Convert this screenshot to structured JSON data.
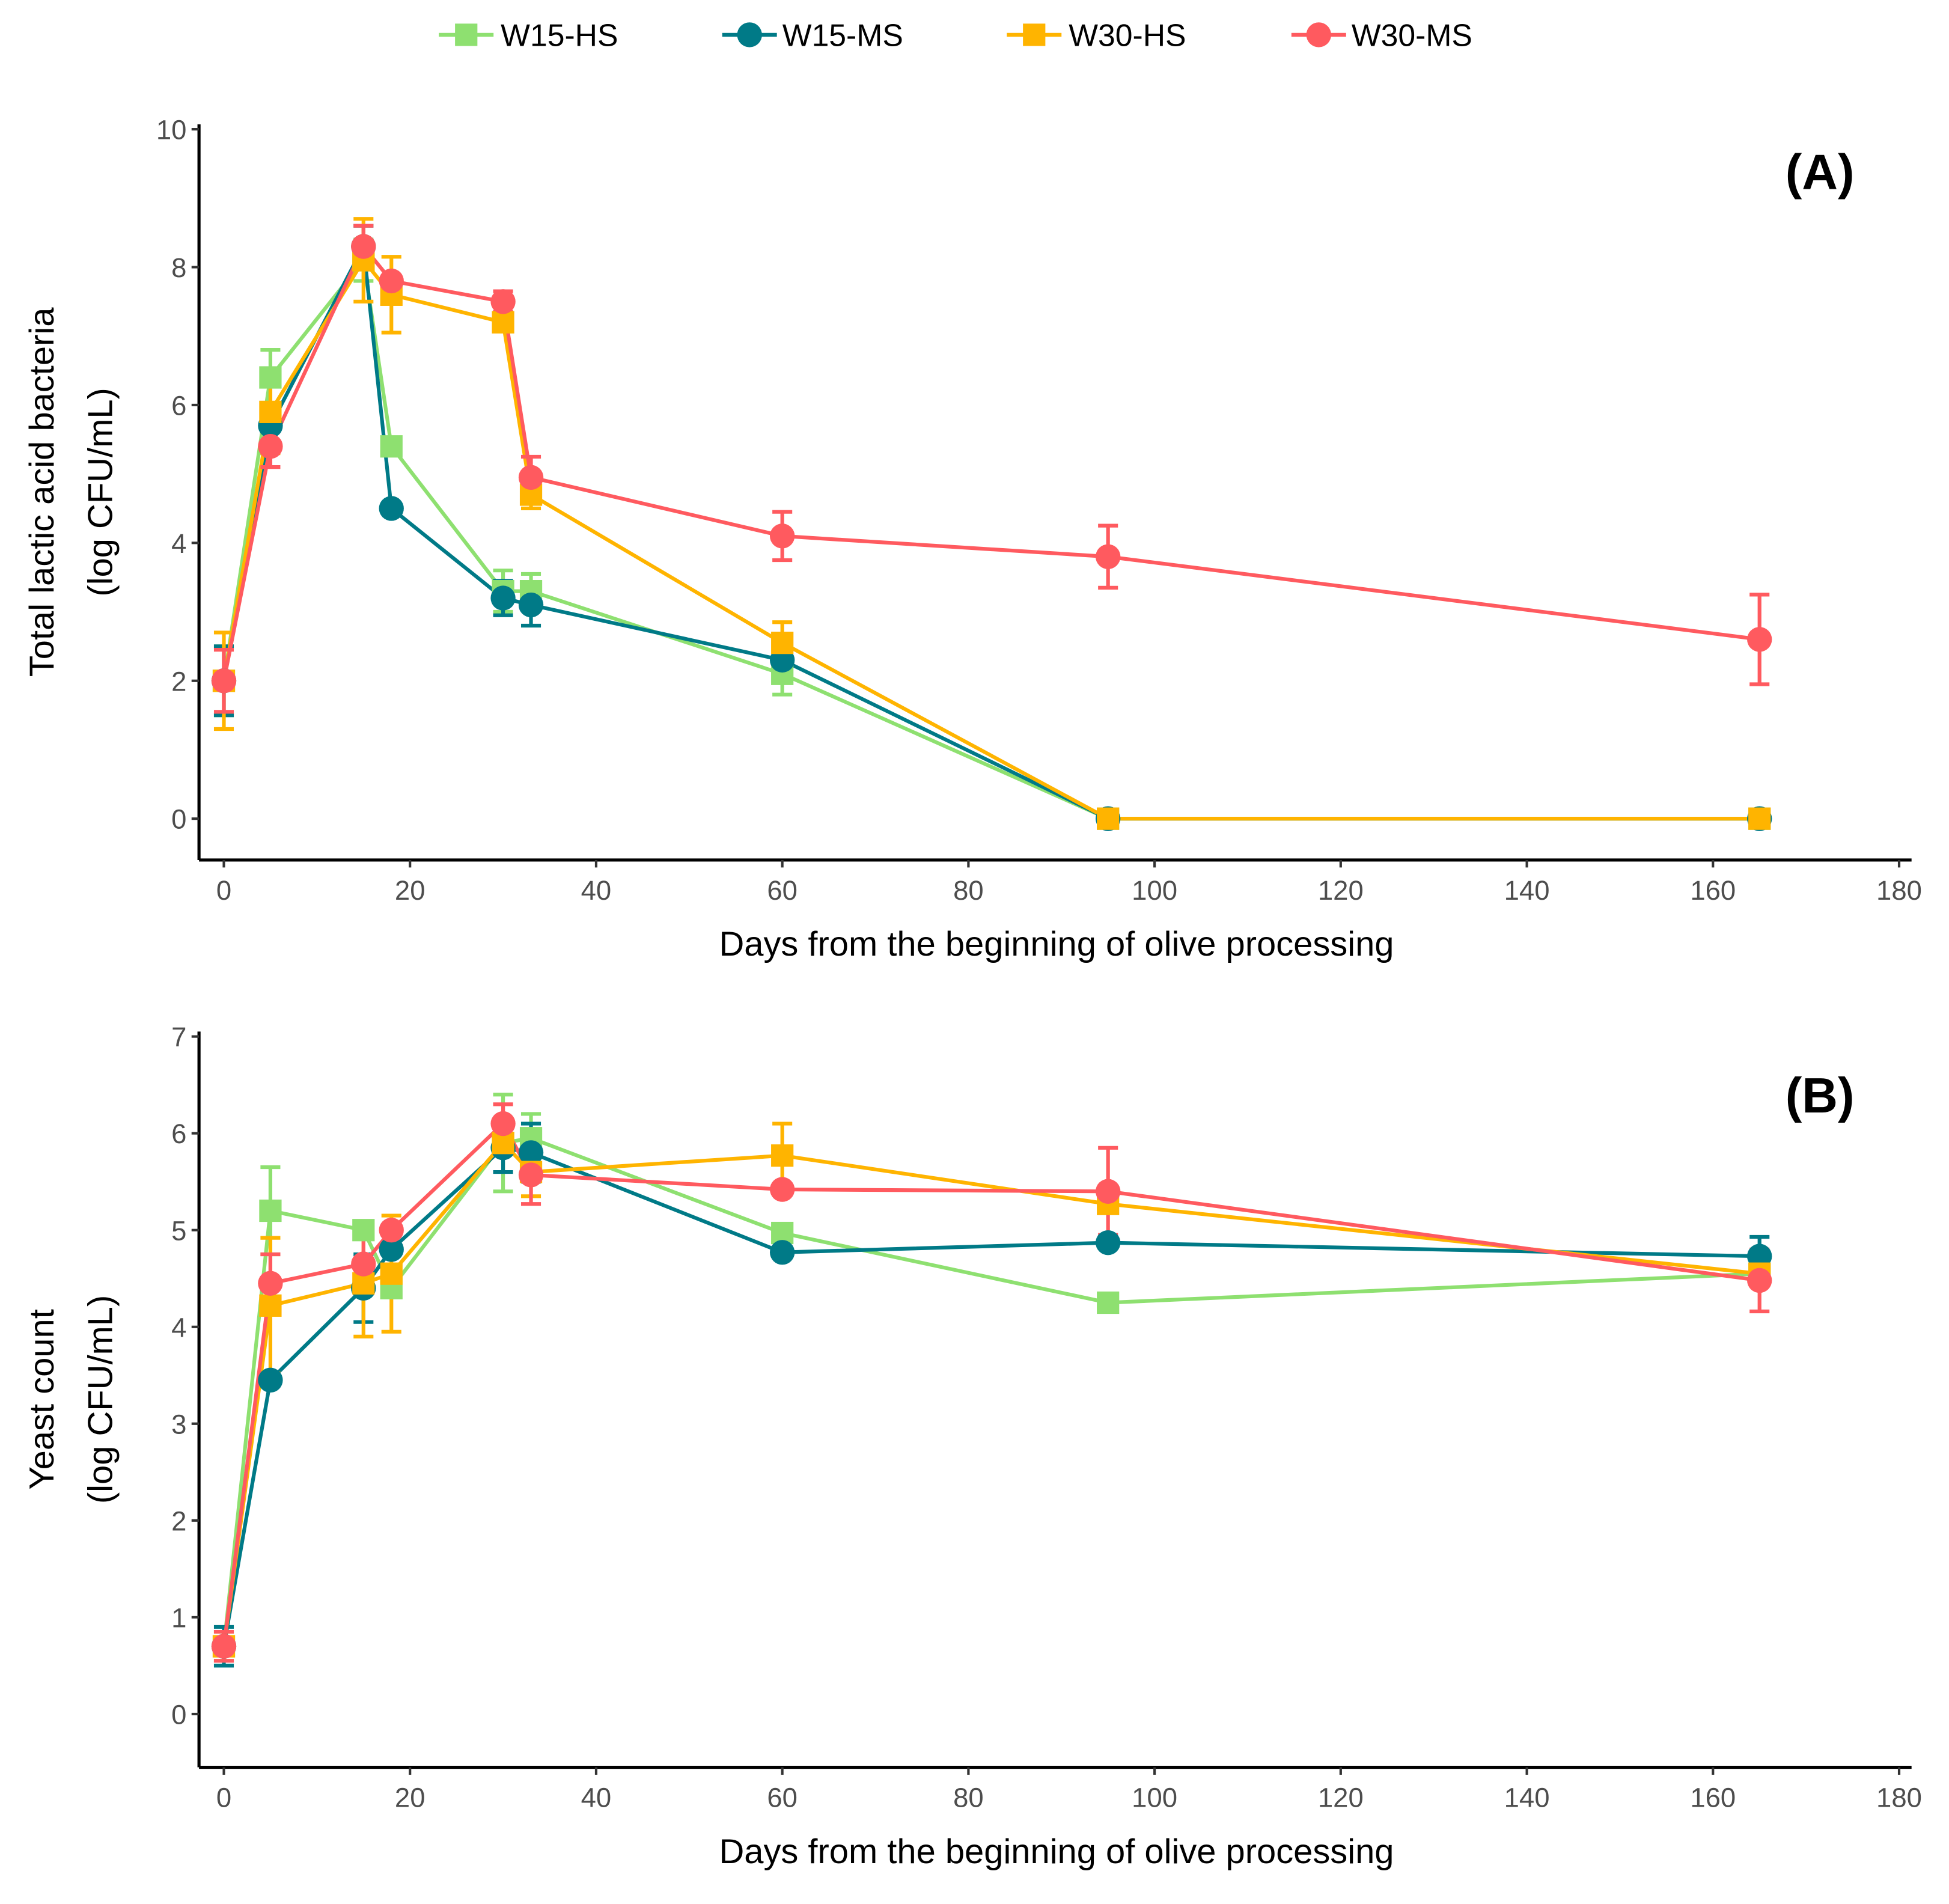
{
  "chart_data": [
    {
      "type": "line",
      "panel_label": "(A)",
      "xlabel": "Days from the beginning of olive processing",
      "ylabel": [
        "Total lactic acid bacteria",
        "(log CFU/mL)"
      ],
      "xlim": [
        0,
        180
      ],
      "ylim": [
        -0.6,
        10
      ],
      "xticks": [
        0,
        20,
        40,
        60,
        80,
        100,
        120,
        140,
        160,
        180
      ],
      "yticks": [
        0,
        2,
        4,
        6,
        8,
        10
      ],
      "x": [
        0,
        5,
        15,
        18,
        30,
        33,
        60,
        95,
        165
      ],
      "series": [
        {
          "name": "W15-HS",
          "values": [
            2.0,
            6.4,
            8.1,
            5.4,
            3.3,
            3.3,
            2.1,
            0,
            0
          ],
          "err": [
            0.5,
            0.4,
            0.3,
            0,
            0.3,
            0.25,
            0.3,
            0,
            0
          ]
        },
        {
          "name": "W15-MS",
          "values": [
            2.0,
            5.7,
            8.3,
            4.5,
            3.2,
            3.1,
            2.3,
            0,
            0
          ],
          "err": [
            0.5,
            0,
            0.3,
            0,
            0.25,
            0.3,
            0,
            0,
            0
          ]
        },
        {
          "name": "W30-HS",
          "values": [
            2.0,
            5.9,
            8.1,
            7.6,
            7.2,
            4.7,
            2.55,
            0,
            0
          ],
          "err": [
            0.7,
            0.6,
            0.6,
            0.55,
            0,
            0.2,
            0.3,
            0,
            0
          ]
        },
        {
          "name": "W30-MS",
          "values": [
            2.0,
            5.4,
            8.3,
            7.8,
            7.5,
            4.95,
            4.1,
            3.8,
            2.6
          ],
          "err": [
            0.45,
            0.3,
            0.3,
            0,
            0.15,
            0.3,
            0.35,
            0.45,
            0.65
          ]
        }
      ]
    },
    {
      "type": "line",
      "panel_label": "(B)",
      "xlabel": "Days from the beginning of olive processing",
      "ylabel": [
        "Yeast count",
        "(log CFU/mL)"
      ],
      "xlim": [
        0,
        180
      ],
      "ylim": [
        -0.55,
        7
      ],
      "xticks": [
        0,
        20,
        40,
        60,
        80,
        100,
        120,
        140,
        160,
        180
      ],
      "yticks": [
        0,
        1,
        2,
        3,
        4,
        5,
        6,
        7
      ],
      "x": [
        0,
        5,
        15,
        18,
        30,
        33,
        60,
        95,
        165
      ],
      "series": [
        {
          "name": "W15-HS",
          "values": [
            0.7,
            5.2,
            5.0,
            4.4,
            5.9,
            5.95,
            4.97,
            4.25,
            4.55
          ],
          "err": [
            0.15,
            0.45,
            0.05,
            0,
            0.5,
            0.25,
            0,
            0,
            0
          ]
        },
        {
          "name": "W15-MS",
          "values": [
            0.7,
            3.45,
            4.4,
            4.8,
            5.85,
            5.8,
            4.77,
            4.87,
            4.73
          ],
          "err": [
            0.2,
            0,
            0.35,
            0,
            0.25,
            0.3,
            0,
            0,
            0.2
          ]
        },
        {
          "name": "W30-HS",
          "values": [
            0.7,
            4.22,
            4.45,
            4.55,
            5.9,
            5.6,
            5.77,
            5.27,
            4.55
          ],
          "err": [
            0.15,
            0.7,
            0.55,
            0.6,
            0,
            0.25,
            0.33,
            0,
            0
          ]
        },
        {
          "name": "W30-MS",
          "values": [
            0.7,
            4.45,
            4.65,
            5.0,
            6.1,
            5.57,
            5.42,
            5.4,
            4.48
          ],
          "err": [
            0.15,
            0.3,
            0.3,
            0,
            0.2,
            0.3,
            0,
            0.45,
            0.32
          ]
        }
      ]
    }
  ],
  "legend": {
    "placement": "top",
    "items": [
      {
        "name": "W15-HS",
        "color": "#8EE070",
        "shape": "square"
      },
      {
        "name": "W15-MS",
        "color": "#007A87",
        "shape": "circle"
      },
      {
        "name": "W30-HS",
        "color": "#FFB400",
        "shape": "square"
      },
      {
        "name": "W30-MS",
        "color": "#FF5A5F",
        "shape": "circle"
      }
    ]
  }
}
